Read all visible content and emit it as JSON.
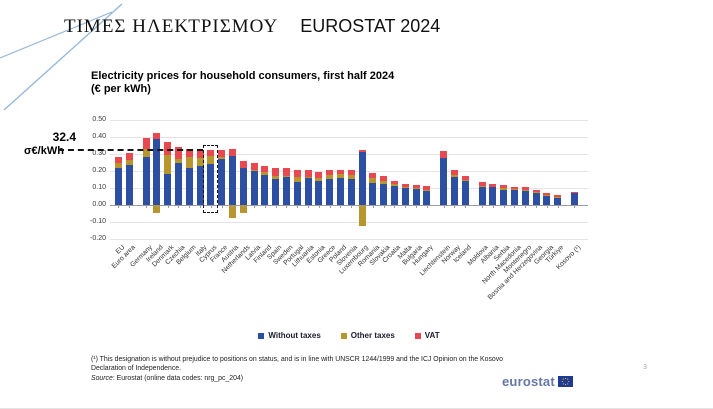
{
  "slide": {
    "title_greek": "ΤΙΜΕΣ  ΗΛΕΚΤΡΙΣΜΟΥ",
    "title_latin": "EUROSTAT 2024",
    "page_number": "3"
  },
  "annotation": {
    "value": "32.4",
    "unit": "σ€/kWh",
    "level": 0.324,
    "highlighted_country": "Cyprus"
  },
  "chart": {
    "title": "Electricity prices for household consumers, first half 2024",
    "subtitle": "(€ per kWh)"
  },
  "chart_data": {
    "type": "bar",
    "stacked": true,
    "title": "Electricity prices for household consumers, first half 2024",
    "subtitle": "(€ per kWh)",
    "ylabel": "€ per kWh",
    "ylim": [
      -0.2,
      0.5
    ],
    "yticks": [
      0.5,
      0.4,
      0.3,
      0.2,
      0.1,
      0.0,
      -0.1,
      -0.2
    ],
    "grid": true,
    "legend_position": "bottom",
    "series_names": [
      "Without taxes",
      "Other taxes",
      "VAT"
    ],
    "colors": {
      "without_taxes": "#2d4fa1",
      "other_taxes": "#b8962e",
      "vat": "#e8484f"
    },
    "legend": [
      {
        "label": "Without taxes",
        "color": "#2d4fa1"
      },
      {
        "label": "Other taxes",
        "color": "#b8962e"
      },
      {
        "label": "VAT",
        "color": "#e8484f"
      }
    ],
    "bars": [
      {
        "label": "EU",
        "without_taxes": 0.215,
        "other_taxes": 0.03,
        "vat": 0.04
      },
      {
        "label": "Euro area",
        "without_taxes": 0.235,
        "other_taxes": 0.028,
        "vat": 0.042
      },
      {
        "label": "Germany",
        "without_taxes": 0.28,
        "other_taxes": 0.052,
        "vat": 0.063,
        "gap_before": true
      },
      {
        "label": "Ireland",
        "without_taxes": 0.388,
        "other_taxes": -0.048,
        "vat": 0.034
      },
      {
        "label": "Denmark",
        "without_taxes": 0.181,
        "other_taxes": 0.116,
        "vat": 0.074
      },
      {
        "label": "Czechia",
        "without_taxes": 0.249,
        "other_taxes": 0.019,
        "vat": 0.074
      },
      {
        "label": "Belgium",
        "without_taxes": 0.216,
        "other_taxes": 0.068,
        "vat": 0.044
      },
      {
        "label": "Italy",
        "without_taxes": 0.228,
        "other_taxes": 0.05,
        "vat": 0.048
      },
      {
        "label": "Cyprus",
        "without_taxes": 0.243,
        "other_taxes": 0.044,
        "vat": 0.037,
        "highlighted": true
      },
      {
        "label": "France",
        "without_taxes": 0.272,
        "other_taxes": 0.01,
        "vat": 0.04
      },
      {
        "label": "Austria",
        "without_taxes": 0.29,
        "other_taxes": -0.075,
        "vat": 0.042
      },
      {
        "label": "Netherlands",
        "without_taxes": 0.218,
        "other_taxes": -0.048,
        "vat": 0.038
      },
      {
        "label": "Latvia",
        "without_taxes": 0.2,
        "other_taxes": 0.006,
        "vat": 0.04
      },
      {
        "label": "Finland",
        "without_taxes": 0.176,
        "other_taxes": 0.02,
        "vat": 0.034
      },
      {
        "label": "Spain",
        "without_taxes": 0.151,
        "other_taxes": 0.02,
        "vat": 0.049
      },
      {
        "label": "Sweden",
        "without_taxes": 0.167,
        "other_taxes": 0.006,
        "vat": 0.043
      },
      {
        "label": "Portugal",
        "without_taxes": 0.137,
        "other_taxes": 0.029,
        "vat": 0.042
      },
      {
        "label": "Lithuania",
        "without_taxes": 0.157,
        "other_taxes": 0.01,
        "vat": 0.036
      },
      {
        "label": "Estonia",
        "without_taxes": 0.143,
        "other_taxes": 0.014,
        "vat": 0.039
      },
      {
        "label": "Greece",
        "without_taxes": 0.152,
        "other_taxes": 0.024,
        "vat": 0.03
      },
      {
        "label": "Poland",
        "without_taxes": 0.16,
        "other_taxes": 0.024,
        "vat": 0.024
      },
      {
        "label": "Slovenia",
        "without_taxes": 0.151,
        "other_taxes": 0.025,
        "vat": 0.03
      },
      {
        "label": "Luxembourg",
        "without_taxes": 0.312,
        "other_taxes": -0.124,
        "vat": 0.014
      },
      {
        "label": "Romania",
        "without_taxes": 0.131,
        "other_taxes": 0.026,
        "vat": 0.029
      },
      {
        "label": "Slovakia",
        "without_taxes": 0.122,
        "other_taxes": 0.021,
        "vat": 0.028
      },
      {
        "label": "Croatia",
        "without_taxes": 0.112,
        "other_taxes": 0.012,
        "vat": 0.019
      },
      {
        "label": "Malta",
        "without_taxes": 0.105,
        "other_taxes": 0.003,
        "vat": 0.018
      },
      {
        "label": "Bulgaria",
        "without_taxes": 0.099,
        "other_taxes": 0.001,
        "vat": 0.019
      },
      {
        "label": "Hungary",
        "without_taxes": 0.086,
        "other_taxes": 0.001,
        "vat": 0.022
      },
      {
        "label": "Liechtenstein",
        "without_taxes": 0.275,
        "other_taxes": 0.0,
        "vat": 0.045,
        "gap_before": true
      },
      {
        "label": "Norway",
        "without_taxes": 0.165,
        "other_taxes": 0.012,
        "vat": 0.028
      },
      {
        "label": "Iceland",
        "without_taxes": 0.143,
        "other_taxes": 0.005,
        "vat": 0.022
      },
      {
        "label": "Moldova",
        "without_taxes": 0.113,
        "other_taxes": 0.001,
        "vat": 0.019,
        "gap_before": true
      },
      {
        "label": "Albania",
        "without_taxes": 0.108,
        "other_taxes": 0.0,
        "vat": 0.013
      },
      {
        "label": "Serbia",
        "without_taxes": 0.088,
        "other_taxes": 0.014,
        "vat": 0.016
      },
      {
        "label": "North Macedonia",
        "without_taxes": 0.092,
        "other_taxes": 0.002,
        "vat": 0.014
      },
      {
        "label": "Montenegro",
        "without_taxes": 0.088,
        "other_taxes": 0.002,
        "vat": 0.014
      },
      {
        "label": "Bosnia and Herzegovina",
        "without_taxes": 0.073,
        "other_taxes": 0.003,
        "vat": 0.012
      },
      {
        "label": "Georgia",
        "without_taxes": 0.059,
        "other_taxes": 0.001,
        "vat": 0.013
      },
      {
        "label": "Türkiye",
        "without_taxes": 0.045,
        "other_taxes": 0.002,
        "vat": 0.012
      },
      {
        "label": "Kosovo (¹)",
        "without_taxes": 0.068,
        "other_taxes": 0.0,
        "vat": 0.008,
        "gap_before": true
      }
    ]
  },
  "footnote": {
    "text": "(¹) This designation is without prejudice to positions on status, and is in line with UNSCR  1244/1999 and the ICJ Opinion on the Kosovo Declaration of Independence."
  },
  "source": {
    "label": "Source",
    "rest": ": Eurostat (online data codes: nrg_pc_204)"
  },
  "logo": {
    "text": "eurostat"
  }
}
